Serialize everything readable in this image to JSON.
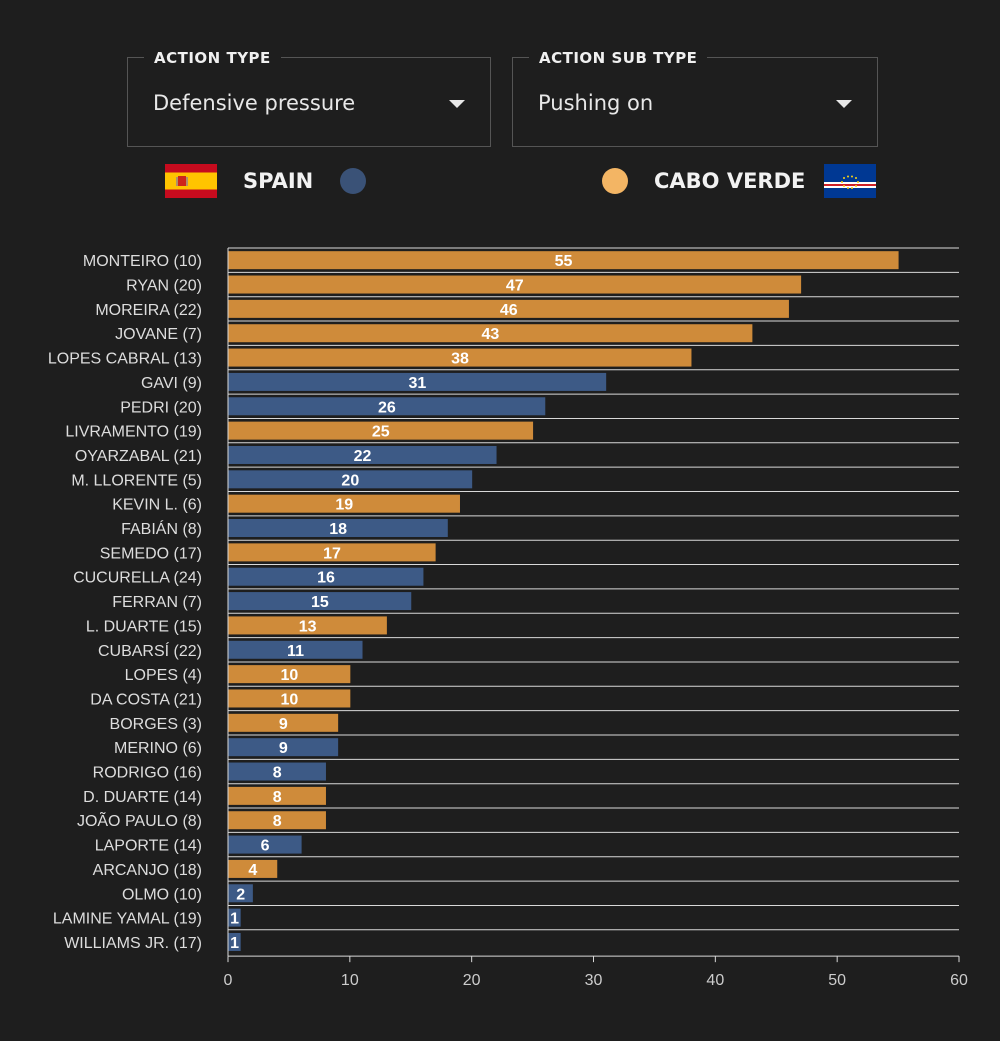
{
  "filters": {
    "action_type": {
      "label": "ACTION TYPE",
      "value": "Defensive pressure"
    },
    "action_sub_type": {
      "label": "ACTION SUB TYPE",
      "value": "Pushing on"
    }
  },
  "teams": {
    "spain": {
      "name": "SPAIN",
      "color": "#3a5277",
      "flag_icon": "spain-flag-icon"
    },
    "cabo_verde": {
      "name": "CABO VERDE",
      "color": "#f3b564",
      "flag_icon": "cabo-verde-flag-icon"
    }
  },
  "colors": {
    "spain_bar": "#3d5a86",
    "cabo_verde_bar": "#cf8b3a"
  },
  "chart_data": {
    "type": "bar",
    "orientation": "horizontal",
    "xlim": [
      0,
      60
    ],
    "x_ticks": [
      0,
      10,
      20,
      30,
      40,
      50,
      60
    ],
    "grid": true,
    "data_labels": true,
    "categories": [
      "MONTEIRO (10)",
      "RYAN (20)",
      "MOREIRA (22)",
      "JOVANE (7)",
      "LOPES CABRAL (13)",
      "GAVI (9)",
      "PEDRI (20)",
      "LIVRAMENTO (19)",
      "OYARZABAL (21)",
      "M. LLORENTE (5)",
      "KEVIN L. (6)",
      "FABIÁN (8)",
      "SEMEDO (17)",
      "CUCURELLA (24)",
      "FERRAN (7)",
      "L. DUARTE (15)",
      "CUBARSÍ (22)",
      "LOPES (4)",
      "DA COSTA (21)",
      "BORGES (3)",
      "MERINO (6)",
      "RODRIGO (16)",
      "D. DUARTE (14)",
      "JOÃO PAULO (8)",
      "LAPORTE (14)",
      "ARCANJO (18)",
      "OLMO (10)",
      "LAMINE YAMAL (19)",
      "WILLIAMS JR. (17)"
    ],
    "values": [
      55,
      47,
      46,
      43,
      38,
      31,
      26,
      25,
      22,
      20,
      19,
      18,
      17,
      16,
      15,
      13,
      11,
      10,
      10,
      9,
      9,
      8,
      8,
      8,
      6,
      4,
      2,
      1,
      1
    ],
    "team": [
      "cabo_verde",
      "cabo_verde",
      "cabo_verde",
      "cabo_verde",
      "cabo_verde",
      "spain",
      "spain",
      "cabo_verde",
      "spain",
      "spain",
      "cabo_verde",
      "spain",
      "cabo_verde",
      "spain",
      "spain",
      "cabo_verde",
      "spain",
      "cabo_verde",
      "cabo_verde",
      "cabo_verde",
      "spain",
      "spain",
      "cabo_verde",
      "cabo_verde",
      "spain",
      "cabo_verde",
      "spain",
      "spain",
      "spain"
    ]
  }
}
